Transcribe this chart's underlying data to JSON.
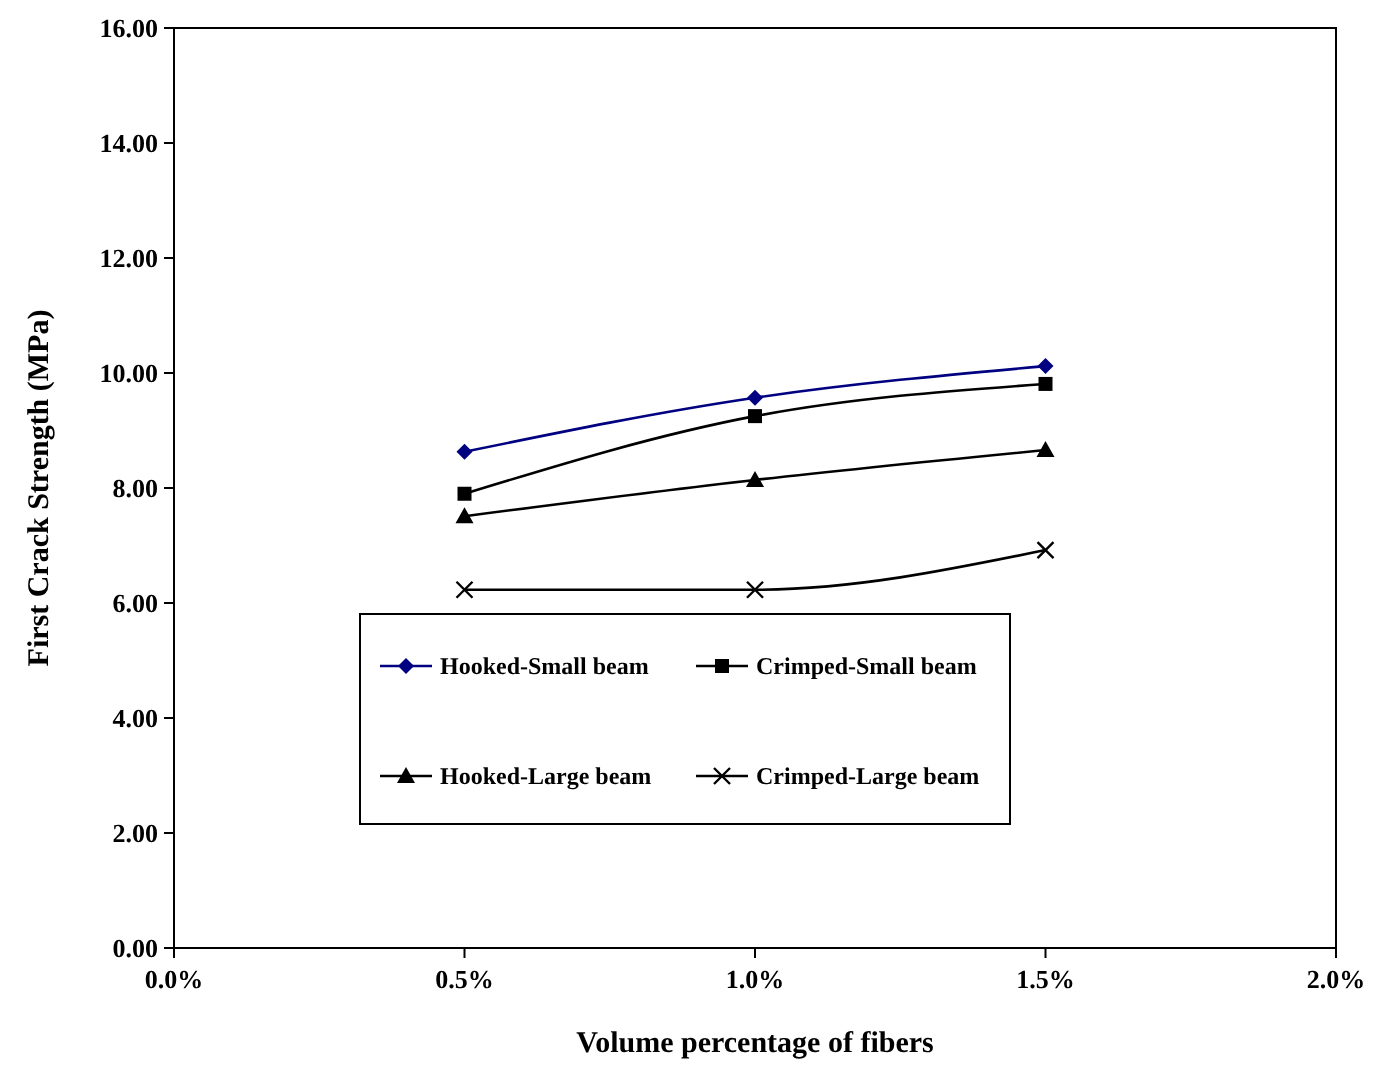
{
  "chart_data": {
    "type": "line",
    "xlabel": "Volume percentage of fibers",
    "ylabel": "First Crack Strength (MPa)",
    "x": [
      0.5,
      1.0,
      1.5
    ],
    "xlim": [
      0,
      2
    ],
    "xticks": [
      {
        "value": 0,
        "label": "0.0%"
      },
      {
        "value": 0.5,
        "label": "0.5%"
      },
      {
        "value": 1,
        "label": "1.0%"
      },
      {
        "value": 1.5,
        "label": "1.5%"
      },
      {
        "value": 2,
        "label": "2.0%"
      }
    ],
    "ylim": [
      0,
      16
    ],
    "yticks": [
      {
        "value": 0,
        "label": "0.00"
      },
      {
        "value": 2,
        "label": "2.00"
      },
      {
        "value": 4,
        "label": "4.00"
      },
      {
        "value": 6,
        "label": "6.00"
      },
      {
        "value": 8,
        "label": "8.00"
      },
      {
        "value": 10,
        "label": "10.00"
      },
      {
        "value": 12,
        "label": "12.00"
      },
      {
        "value": 14,
        "label": "14.00"
      },
      {
        "value": 16,
        "label": "16.00"
      }
    ],
    "grid": false,
    "legend": "bottom",
    "line_style": "solid",
    "series": [
      {
        "name": "Hooked-Small beam",
        "color": "#000080",
        "marker": "diamond",
        "values": [
          8.63,
          9.57,
          10.12
        ]
      },
      {
        "name": "Crimped-Small beam",
        "color": "#000000",
        "marker": "square",
        "values": [
          7.9,
          9.25,
          9.81
        ]
      },
      {
        "name": "Hooked-Large beam",
        "color": "#000000",
        "marker": "triangle",
        "values": [
          7.51,
          8.14,
          8.66
        ]
      },
      {
        "name": "Crimped-Large beam",
        "color": "#000000",
        "marker": "cross",
        "values": [
          6.23,
          6.23,
          6.92
        ]
      }
    ]
  }
}
